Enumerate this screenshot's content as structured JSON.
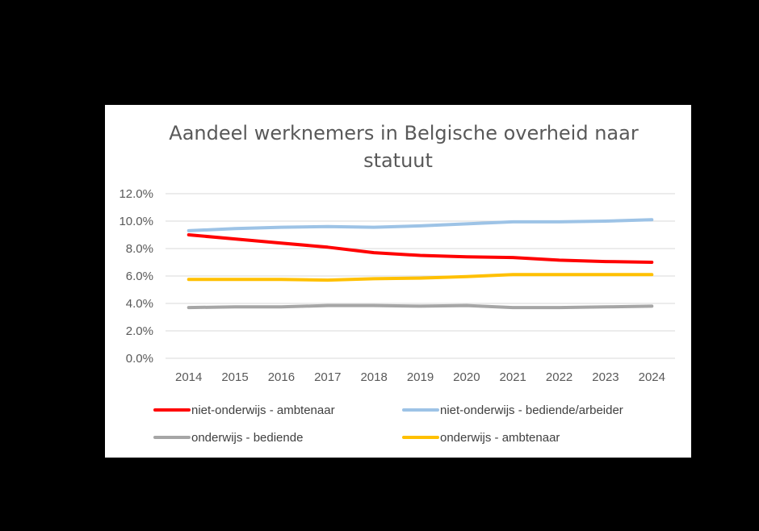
{
  "chart_data": {
    "type": "line",
    "title_line1": "Aandeel werknemers in Belgische overheid naar",
    "title_line2": "statuut",
    "xlabel": "",
    "ylabel": "",
    "ylim": [
      0,
      12
    ],
    "y_ticks": [
      "0.0%",
      "2.0%",
      "4.0%",
      "6.0%",
      "8.0%",
      "10.0%",
      "12.0%"
    ],
    "categories": [
      "2014",
      "2015",
      "2016",
      "2017",
      "2018",
      "2019",
      "2020",
      "2021",
      "2022",
      "2023",
      "2024"
    ],
    "grid": true,
    "legend_position": "bottom",
    "series": [
      {
        "name": "niet-onderwijs - ambtenaar",
        "color": "#ff0000",
        "values": [
          9.0,
          8.7,
          8.4,
          8.1,
          7.7,
          7.5,
          7.4,
          7.35,
          7.15,
          7.05,
          7.0
        ]
      },
      {
        "name": "niet-onderwijs - bediende/arbeider",
        "color": "#9dc3e6",
        "values": [
          9.3,
          9.45,
          9.55,
          9.6,
          9.55,
          9.65,
          9.8,
          9.95,
          9.95,
          10.0,
          10.1
        ]
      },
      {
        "name": "onderwijs  - bediende",
        "color": "#a6a6a6",
        "values": [
          3.7,
          3.75,
          3.75,
          3.85,
          3.85,
          3.8,
          3.85,
          3.7,
          3.7,
          3.75,
          3.8
        ]
      },
      {
        "name": "onderwijs - ambtenaar",
        "color": "#ffc000",
        "values": [
          5.75,
          5.75,
          5.75,
          5.7,
          5.8,
          5.85,
          5.95,
          6.1,
          6.1,
          6.1,
          6.1
        ]
      }
    ]
  }
}
